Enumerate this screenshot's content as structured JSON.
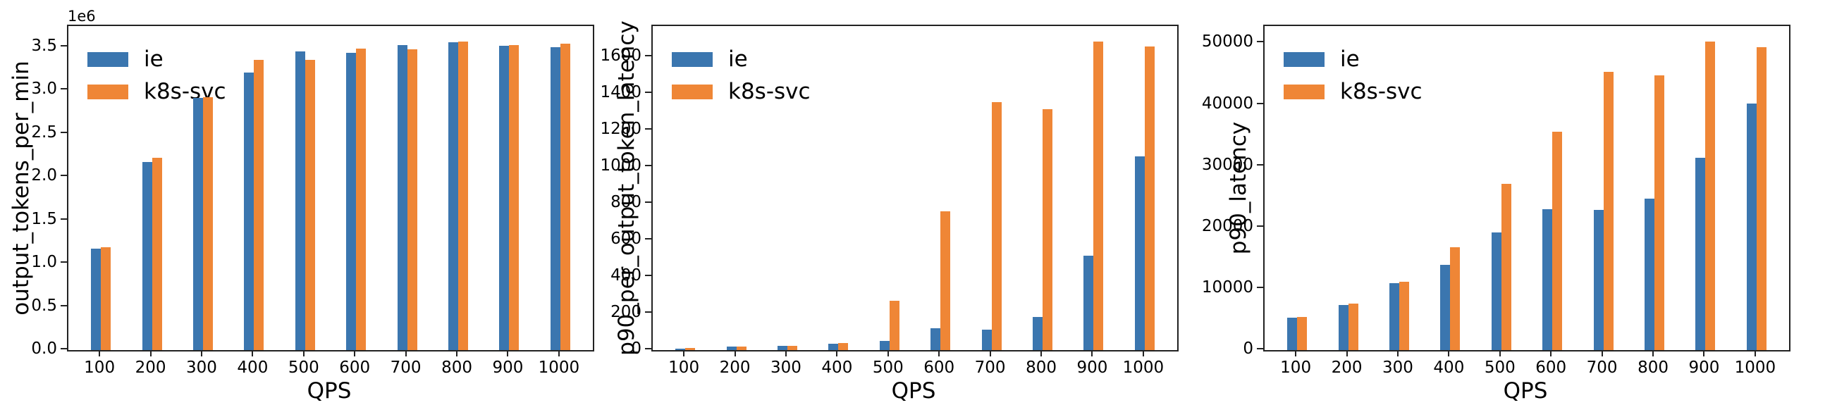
{
  "figure_type": "three grouped bar charts comparing inference endpoint (ie) vs kubernetes service (k8s-svc) across QPS load levels",
  "colors": {
    "ie": "#3b76af",
    "k8s-svc": "#ef8636",
    "spine": "#222222",
    "text": "#000000"
  },
  "chart_data": [
    {
      "type": "bar",
      "title": "",
      "xlabel": "QPS",
      "ylabel": "output_tokens_per_min",
      "offset_text": "1e6",
      "grid": false,
      "legend_position": "upper left",
      "legend_entries": [
        "ie",
        "k8s-svc"
      ],
      "categories": [
        100,
        200,
        300,
        400,
        500,
        600,
        700,
        800,
        900,
        1000
      ],
      "series": [
        {
          "name": "ie",
          "color": "#3b76af",
          "values": [
            1170000,
            2170000,
            2910000,
            3200000,
            3450000,
            3430000,
            3520000,
            3550000,
            3510000,
            3500000
          ]
        },
        {
          "name": "k8s-svc",
          "color": "#ef8636",
          "values": [
            1190000,
            2220000,
            2920000,
            3350000,
            3350000,
            3480000,
            3470000,
            3560000,
            3520000,
            3540000
          ]
        }
      ],
      "ylim": [
        0,
        3740000
      ],
      "yticks": [
        {
          "value": 0,
          "label": "0.0"
        },
        {
          "value": 500000,
          "label": "0.5"
        },
        {
          "value": 1000000,
          "label": "1.0"
        },
        {
          "value": 1500000,
          "label": "1.5"
        },
        {
          "value": 2000000,
          "label": "2.0"
        },
        {
          "value": 2500000,
          "label": "2.5"
        },
        {
          "value": 3000000,
          "label": "3.0"
        },
        {
          "value": 3500000,
          "label": "3.5"
        }
      ]
    },
    {
      "type": "bar",
      "title": "",
      "xlabel": "QPS",
      "ylabel": "p90_per_output_token_latency",
      "offset_text": "",
      "grid": false,
      "legend_position": "upper left",
      "legend_entries": [
        "ie",
        "k8s-svc"
      ],
      "categories": [
        100,
        200,
        300,
        400,
        500,
        600,
        700,
        800,
        900,
        1000
      ],
      "series": [
        {
          "name": "ie",
          "color": "#3b76af",
          "values": [
            8,
            18,
            25,
            33,
            49,
            118,
            110,
            180,
            515,
            1060
          ]
        },
        {
          "name": "k8s-svc",
          "color": "#ef8636",
          "values": [
            10,
            18,
            25,
            37,
            270,
            760,
            1355,
            1315,
            1685,
            1660
          ]
        }
      ],
      "ylim": [
        0,
        1770
      ],
      "yticks": [
        {
          "value": 0,
          "label": "0"
        },
        {
          "value": 200,
          "label": "200"
        },
        {
          "value": 400,
          "label": "400"
        },
        {
          "value": 600,
          "label": "600"
        },
        {
          "value": 800,
          "label": "800"
        },
        {
          "value": 1000,
          "label": "1000"
        },
        {
          "value": 1200,
          "label": "1200"
        },
        {
          "value": 1400,
          "label": "1400"
        },
        {
          "value": 1600,
          "label": "1600"
        }
      ]
    },
    {
      "type": "bar",
      "title": "",
      "xlabel": "QPS",
      "ylabel": "p90_latency",
      "offset_text": "",
      "grid": false,
      "legend_position": "upper left",
      "legend_entries": [
        "ie",
        "k8s-svc"
      ],
      "categories": [
        100,
        200,
        300,
        400,
        500,
        600,
        700,
        800,
        900,
        1000
      ],
      "series": [
        {
          "name": "ie",
          "color": "#3b76af",
          "values": [
            5300,
            7400,
            10900,
            13900,
            19200,
            23000,
            22800,
            24700,
            31300,
            40200
          ]
        },
        {
          "name": "k8s-svc",
          "color": "#ef8636",
          "values": [
            5400,
            7600,
            11100,
            16800,
            27100,
            35600,
            45300,
            44800,
            50300,
            49400
          ]
        }
      ],
      "ylim": [
        0,
        52800
      ],
      "yticks": [
        {
          "value": 0,
          "label": "0"
        },
        {
          "value": 10000,
          "label": "10000"
        },
        {
          "value": 20000,
          "label": "20000"
        },
        {
          "value": 30000,
          "label": "30000"
        },
        {
          "value": 40000,
          "label": "40000"
        },
        {
          "value": 50000,
          "label": "50000"
        }
      ]
    }
  ]
}
